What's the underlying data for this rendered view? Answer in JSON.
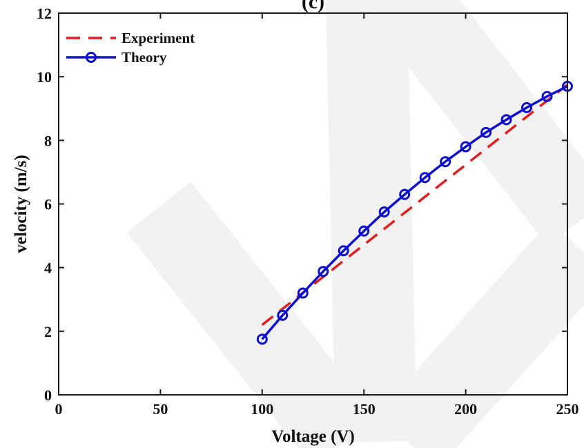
{
  "chart_data": {
    "type": "line",
    "title": "(c)",
    "xlabel": "Voltage (V)",
    "ylabel": "velocity (m/s)",
    "xlim": [
      0,
      250
    ],
    "ylim": [
      0,
      12
    ],
    "xticks": [
      0,
      50,
      100,
      150,
      200,
      250
    ],
    "yticks": [
      0,
      2,
      4,
      6,
      8,
      10,
      12
    ],
    "grid": false,
    "legend_position": "top-left",
    "series": [
      {
        "name": "Experiment",
        "style": "dashed",
        "color": "#dd1f1f",
        "marker": "none",
        "x": [
          100,
          250
        ],
        "y": [
          2.2,
          9.75
        ]
      },
      {
        "name": "Theory",
        "style": "solid",
        "color": "#0d0dcc",
        "marker": "circle",
        "x": [
          100,
          110,
          120,
          130,
          140,
          150,
          160,
          170,
          180,
          190,
          200,
          210,
          220,
          230,
          240,
          250
        ],
        "y": [
          1.75,
          2.5,
          3.2,
          3.88,
          4.53,
          5.15,
          5.75,
          6.3,
          6.83,
          7.33,
          7.8,
          8.25,
          8.65,
          9.03,
          9.38,
          9.7
        ]
      }
    ],
    "watermark": "Z"
  }
}
